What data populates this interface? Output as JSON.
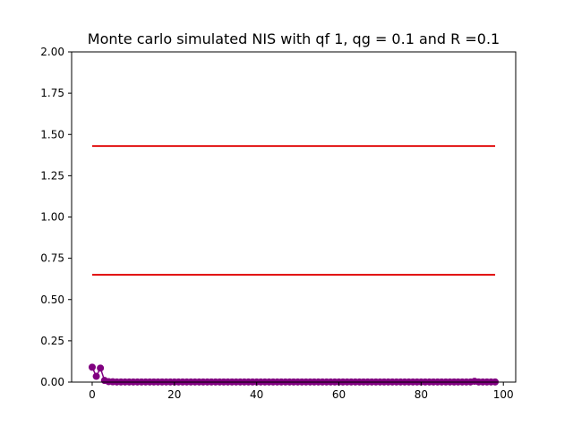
{
  "chart_data": {
    "type": "line",
    "title": "Monte carlo simulated NIS with qf 1, qg = 0.1 and R =0.1",
    "xlabel": "",
    "ylabel": "",
    "xlim": [
      -5,
      103
    ],
    "ylim": [
      0,
      2
    ],
    "xticks": [
      0,
      20,
      40,
      60,
      80,
      100
    ],
    "xtick_labels": [
      "0",
      "20",
      "40",
      "60",
      "80",
      "100"
    ],
    "yticks": [
      0,
      0.25,
      0.5,
      0.75,
      1.0,
      1.25,
      1.5,
      1.75,
      2.0
    ],
    "ytick_labels": [
      "0.00",
      "0.25",
      "0.50",
      "0.75",
      "1.00",
      "1.25",
      "1.50",
      "1.75",
      "2.00"
    ],
    "grid": false,
    "legend": "none",
    "series": [
      {
        "color": "#800080",
        "marker": "circle",
        "x_start": 0,
        "x_step": 1,
        "values": [
          0.09,
          0.035,
          0.085,
          0.01,
          0.003,
          0.002,
          0.001,
          0.001,
          0.001,
          0.001,
          0.001,
          0.001,
          0.001,
          0.001,
          0.001,
          0.001,
          0.001,
          0.001,
          0.001,
          0.001,
          0.001,
          0.001,
          0.001,
          0.001,
          0.001,
          0.001,
          0.001,
          0.001,
          0.001,
          0.001,
          0.001,
          0.001,
          0.001,
          0.001,
          0.001,
          0.001,
          0.001,
          0.001,
          0.001,
          0.001,
          0.001,
          0.001,
          0.001,
          0.001,
          0.001,
          0.001,
          0.001,
          0.001,
          0.001,
          0.001,
          0.001,
          0.001,
          0.001,
          0.001,
          0.001,
          0.001,
          0.001,
          0.001,
          0.001,
          0.001,
          0.001,
          0.001,
          0.001,
          0.001,
          0.001,
          0.001,
          0.001,
          0.001,
          0.001,
          0.001,
          0.001,
          0.001,
          0.001,
          0.001,
          0.001,
          0.001,
          0.001,
          0.001,
          0.001,
          0.001,
          0.001,
          0.001,
          0.001,
          0.001,
          0.001,
          0.001,
          0.001,
          0.001,
          0.001,
          0.001,
          0.001,
          0.001,
          0.001,
          0.005,
          0.001,
          0.001,
          0.001,
          0.001,
          0.001
        ]
      }
    ],
    "hlines": [
      {
        "y": 1.43,
        "x_range": [
          0,
          98
        ],
        "color": "#e00000"
      },
      {
        "y": 0.65,
        "x_range": [
          0,
          98
        ],
        "color": "#e00000"
      }
    ]
  }
}
